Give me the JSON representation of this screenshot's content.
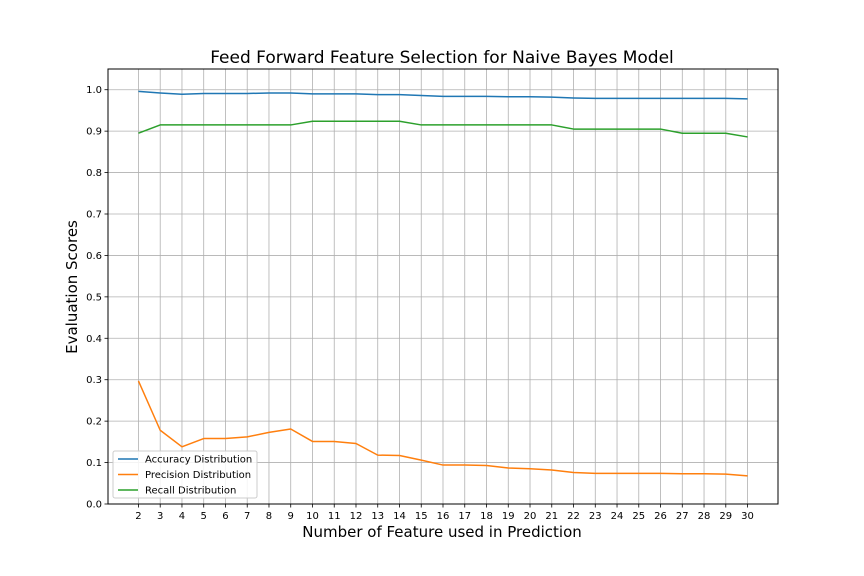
{
  "chart_data": {
    "type": "line",
    "title": "Feed Forward Feature Selection for Naive Bayes Model",
    "xlabel": "Number of Feature used in Prediction",
    "ylabel": "Evaluation Scores",
    "x": [
      2,
      3,
      4,
      5,
      6,
      7,
      8,
      9,
      10,
      11,
      12,
      13,
      14,
      15,
      16,
      17,
      18,
      19,
      20,
      21,
      22,
      23,
      24,
      25,
      26,
      27,
      28,
      29,
      30
    ],
    "xlim": [
      0.6,
      31.4
    ],
    "ylim": [
      0.0,
      1.05
    ],
    "yticks": [
      0.0,
      0.1,
      0.2,
      0.3,
      0.4,
      0.5,
      0.6,
      0.7,
      0.8,
      0.9,
      1.0
    ],
    "grid": true,
    "legend_position": "lower-left",
    "series": [
      {
        "name": "Accuracy Distribution",
        "color": "#1f77b4",
        "values": [
          0.996,
          0.992,
          0.989,
          0.991,
          0.991,
          0.991,
          0.992,
          0.992,
          0.99,
          0.99,
          0.99,
          0.988,
          0.988,
          0.986,
          0.984,
          0.984,
          0.984,
          0.983,
          0.983,
          0.982,
          0.98,
          0.979,
          0.979,
          0.979,
          0.979,
          0.979,
          0.979,
          0.979,
          0.978
        ]
      },
      {
        "name": "Precision Distribution",
        "color": "#ff7f0e",
        "values": [
          0.297,
          0.178,
          0.138,
          0.158,
          0.158,
          0.162,
          0.173,
          0.181,
          0.151,
          0.151,
          0.146,
          0.118,
          0.117,
          0.106,
          0.094,
          0.094,
          0.093,
          0.087,
          0.085,
          0.082,
          0.076,
          0.074,
          0.074,
          0.074,
          0.074,
          0.073,
          0.073,
          0.072,
          0.068
        ]
      },
      {
        "name": "Recall Distribution",
        "color": "#2ca02c",
        "values": [
          0.895,
          0.915,
          0.915,
          0.915,
          0.915,
          0.915,
          0.915,
          0.915,
          0.924,
          0.924,
          0.924,
          0.924,
          0.924,
          0.915,
          0.915,
          0.915,
          0.915,
          0.915,
          0.915,
          0.915,
          0.905,
          0.905,
          0.905,
          0.905,
          0.905,
          0.895,
          0.895,
          0.895,
          0.886
        ]
      }
    ]
  }
}
